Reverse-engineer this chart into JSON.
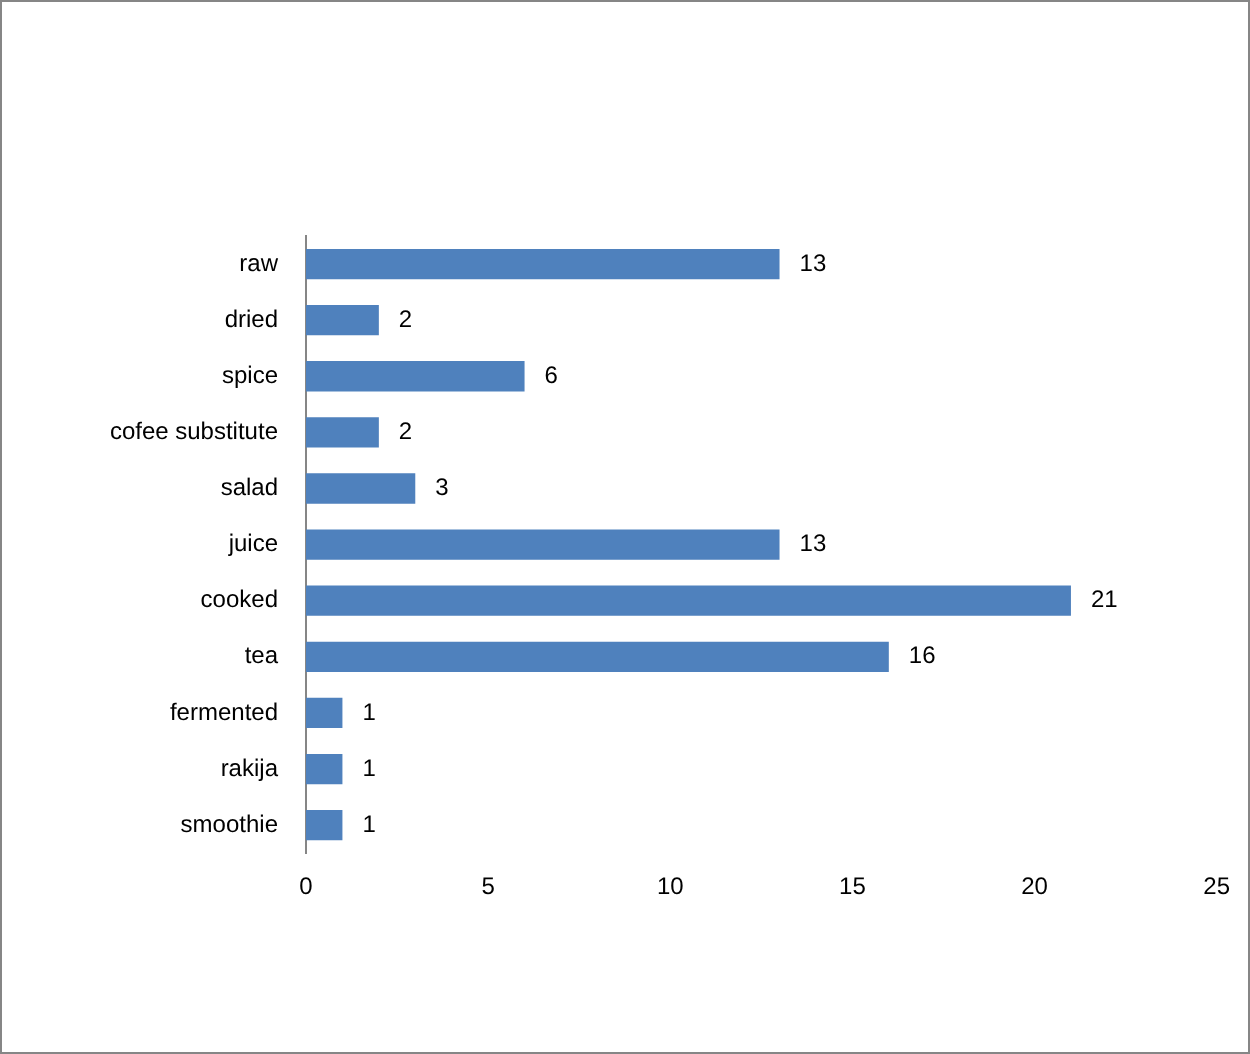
{
  "chart_data": {
    "type": "bar",
    "orientation": "horizontal",
    "categories": [
      "raw",
      "dried",
      "spice",
      "cofee substitute",
      "salad",
      "juice",
      "cooked",
      "tea",
      "fermented",
      "rakija",
      "smoothie"
    ],
    "values": [
      13,
      2,
      6,
      2,
      3,
      13,
      21,
      16,
      1,
      1,
      1
    ],
    "color": "#4f81bd",
    "xlim": [
      0,
      25
    ],
    "xticks": [
      0,
      5,
      10,
      15,
      20,
      25
    ],
    "grid": false,
    "legend": false,
    "data_labels": true
  }
}
